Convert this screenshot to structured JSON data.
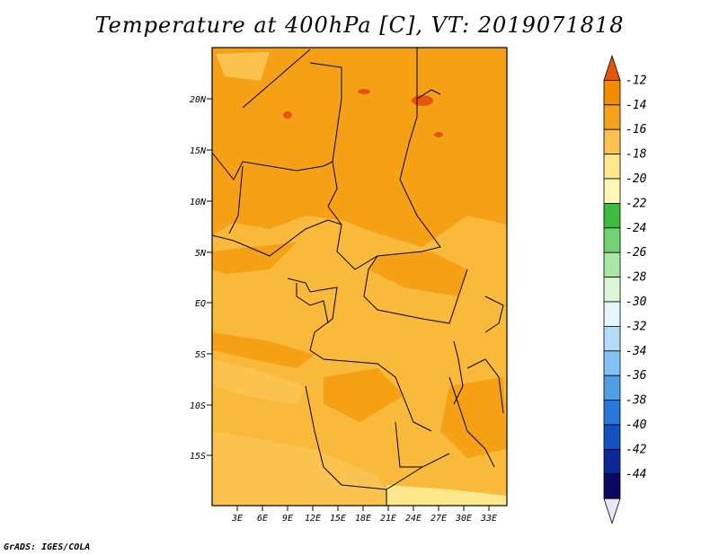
{
  "title": "Temperature at 400hPa [C], VT: 2019071818",
  "credit": "GrADS: IGES/COLA",
  "map": {
    "lat_labels": [
      "20N",
      "15N",
      "10N",
      "5N",
      "EQ",
      "5S",
      "10S",
      "15S"
    ],
    "lon_labels": [
      "3E",
      "6E",
      "9E",
      "12E",
      "15E",
      "18E",
      "21E",
      "24E",
      "27E",
      "30E",
      "33E"
    ]
  },
  "colorbar": {
    "labels": [
      "-12",
      "-14",
      "-16",
      "-18",
      "-20",
      "-22",
      "-24",
      "-26",
      "-28",
      "-30",
      "-32",
      "-34",
      "-36",
      "-38",
      "-40",
      "-42",
      "-44"
    ],
    "colors": [
      "#e8540c",
      "#f08c00",
      "#f5a31e",
      "#fac24f",
      "#fde78c",
      "#fef7b8",
      "#3cbc3c",
      "#73d273",
      "#a9e6a3",
      "#dcf5d6",
      "#e6f5ff",
      "#b4dcfa",
      "#82c3f5",
      "#509ee6",
      "#2878dc",
      "#1450c3",
      "#0a2896",
      "#0a0a64",
      "#e6e6f5"
    ]
  }
}
